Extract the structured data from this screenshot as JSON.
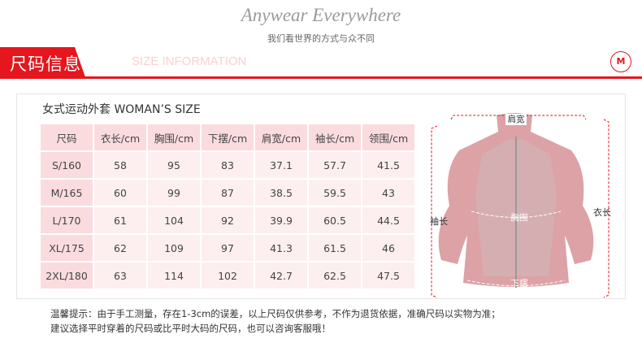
{
  "header": {
    "slogan": "Anywear Everywhere",
    "slogan_cn": "我们看世界的方式与众不同"
  },
  "band": {
    "title": "尺码信息",
    "subtitle": "SIZE INFORMATION",
    "logo": "M",
    "accent": "#e5161d"
  },
  "size_table": {
    "title": "女式运动外套  WOMAN’S SIZE",
    "columns": [
      "尺码",
      "衣长/cm",
      "胸围/cm",
      "下摆/cm",
      "肩宽/cm",
      "袖长/cm",
      "领围/cm"
    ],
    "rows": [
      [
        "S/160",
        "58",
        "95",
        "83",
        "37.1",
        "57.7",
        "41.5"
      ],
      [
        "M/165",
        "60",
        "99",
        "87",
        "38.5",
        "59.5",
        "43"
      ],
      [
        "L/170",
        "61",
        "104",
        "92",
        "39.9",
        "60.5",
        "44.5"
      ],
      [
        "XL/175",
        "62",
        "109",
        "97",
        "41.3",
        "61.5",
        "46"
      ],
      [
        "2XL/180",
        "63",
        "114",
        "102",
        "42.7",
        "62.5",
        "47.5"
      ]
    ]
  },
  "diagram": {
    "shoulder": "肩宽",
    "chest": "胸围",
    "length": "衣长",
    "sleeve": "袖长",
    "hem": "下摆"
  },
  "notes": [
    "温馨提示：由于手工测量，存在1-3cm的误差，以上尺码仅供参考，不作为退货依据，准确尺码以实物为准；",
    "建议选择平时穿着的尺码或比平时大码的尺码，也可以咨询客服哦！"
  ]
}
